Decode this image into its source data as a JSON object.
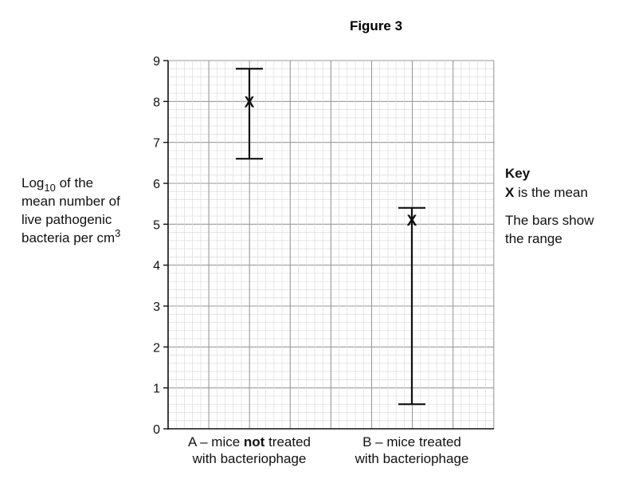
{
  "chart_data": {
    "type": "scatter",
    "title": "Figure 3",
    "ylabel_lines": [
      {
        "pre": "Log",
        "sub": "10",
        "post": " of the"
      },
      {
        "pre": "mean number of",
        "sub": "",
        "post": ""
      },
      {
        "pre": "live pathogenic",
        "sub": "",
        "post": ""
      },
      {
        "pre": "bacteria per cm",
        "sup": "3",
        "post": ""
      }
    ],
    "ylim": [
      0,
      9
    ],
    "yticks": [
      0,
      1,
      2,
      3,
      4,
      5,
      6,
      7,
      8,
      9
    ],
    "grid": true,
    "categories": [
      {
        "line1_parts": [
          "A – mice ",
          "not",
          " treated"
        ],
        "line2": "with bacteriophage"
      },
      {
        "line1_parts": [
          "B – mice treated",
          "",
          ""
        ],
        "line2": "with bacteriophage"
      }
    ],
    "points": [
      {
        "category": "A",
        "mean": 8.0,
        "min": 6.6,
        "max": 8.8
      },
      {
        "category": "B",
        "mean": 5.1,
        "min": 0.6,
        "max": 5.4
      }
    ],
    "marker": "X",
    "legend": {
      "placement": "right",
      "title": "Key",
      "mean_symbol": "X",
      "mean_text": " is the mean",
      "range_lines": [
        "The bars show",
        "the range"
      ]
    }
  }
}
